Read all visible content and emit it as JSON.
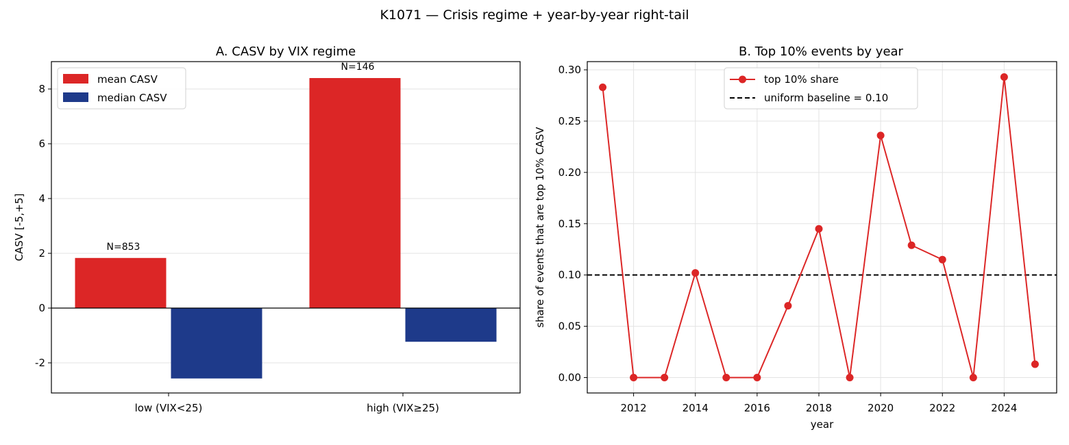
{
  "figure": {
    "suptitle": "K1071 — Crisis regime + year-by-year right-tail"
  },
  "chart_data": [
    {
      "type": "bar",
      "title": "A. CASV by VIX regime",
      "xlabel": "",
      "ylabel": "CASV [-5,+5]",
      "categories": [
        "low (VIX<25)",
        "high (VIX≥25)"
      ],
      "series": [
        {
          "name": "mean CASV",
          "values": [
            1.83,
            8.4
          ],
          "color": "#dc2626"
        },
        {
          "name": "median CASV",
          "values": [
            -2.57,
            -1.23
          ],
          "color": "#1e3a8a"
        }
      ],
      "annotations": [
        "N=853",
        "N=146"
      ],
      "ylim": [
        -3.1,
        9.0
      ],
      "yticks": [
        -2,
        0,
        2,
        4,
        6,
        8
      ],
      "ytick_labels": [
        "-2",
        "0",
        "2",
        "4",
        "6",
        "8"
      ],
      "grid": "y",
      "legend": "top-left"
    },
    {
      "type": "line",
      "title": "B. Top 10% events by year",
      "xlabel": "year",
      "ylabel": "share of events that are top 10% CASV",
      "x": [
        2011,
        2012,
        2013,
        2014,
        2015,
        2016,
        2017,
        2018,
        2019,
        2020,
        2021,
        2022,
        2023,
        2024,
        2025
      ],
      "series": [
        {
          "name": "top 10% share",
          "values": [
            0.283,
            0.0,
            0.0,
            0.102,
            0.0,
            0.0,
            0.07,
            0.145,
            0.0,
            0.236,
            0.129,
            0.115,
            0.0,
            0.293,
            0.013
          ],
          "color": "#dc2626"
        }
      ],
      "baseline": {
        "name": "uniform baseline = 0.10",
        "value": 0.1,
        "color": "#000000"
      },
      "xlim": [
        2010.5,
        2025.7
      ],
      "ylim": [
        -0.015,
        0.308
      ],
      "xticks": [
        2012,
        2014,
        2016,
        2018,
        2020,
        2022,
        2024
      ],
      "xtick_labels": [
        "2012",
        "2014",
        "2016",
        "2018",
        "2020",
        "2022",
        "2024"
      ],
      "yticks": [
        0,
        0.05,
        0.1,
        0.15,
        0.2,
        0.25,
        0.3
      ],
      "ytick_labels": [
        "0.00",
        "0.05",
        "0.10",
        "0.15",
        "0.20",
        "0.25",
        "0.30"
      ],
      "grid": "both",
      "legend": "top-center"
    }
  ]
}
